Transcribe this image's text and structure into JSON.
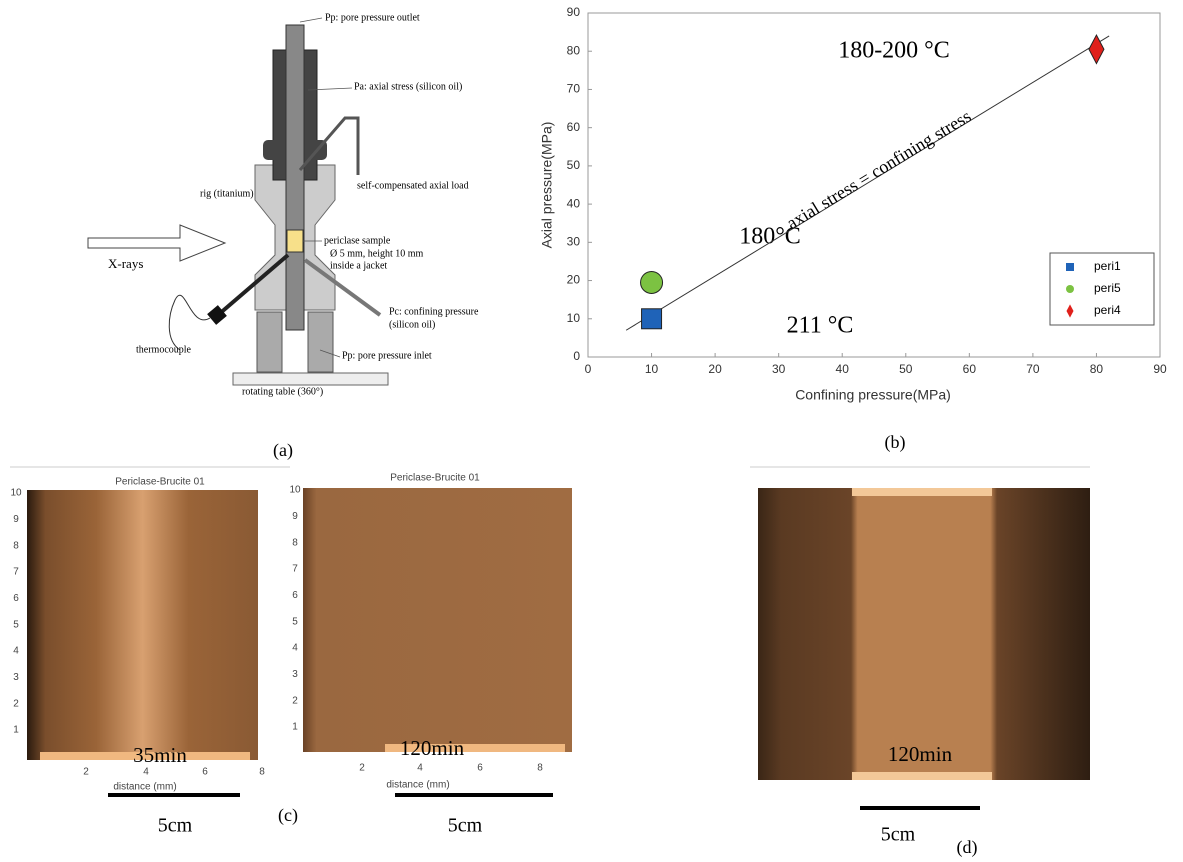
{
  "diagram_a": {
    "labels": [
      "Pp: pore pressure outlet",
      "Pa: axial stress (silicon oil)",
      "self-compensated axial load",
      "rig (titanium)",
      "periclase sample",
      "Ø 5 mm, height 10 mm",
      "inside a jacket",
      "X-rays",
      "Pc: confining pressure",
      "(silicon oil)",
      "thermocouple",
      "Pp: pore pressure inlet",
      "rotating table (360°)"
    ],
    "caption": "(a)"
  },
  "chart_data": {
    "type": "scatter",
    "x_label": "Confining pressure(MPa)",
    "y_label": "Axial pressure(MPa)",
    "xlim": [
      0,
      90
    ],
    "ylim": [
      0,
      90
    ],
    "xticks": [
      0,
      10,
      20,
      30,
      40,
      50,
      60,
      70,
      80,
      90
    ],
    "yticks": [
      0,
      10,
      20,
      30,
      40,
      50,
      60,
      70,
      80,
      90
    ],
    "grid": false,
    "legend": "lower right",
    "series": [
      {
        "name": "peri1",
        "color": "#1f63b8",
        "marker": "square",
        "x": [
          10
        ],
        "values": [
          10
        ]
      },
      {
        "name": "peri5",
        "color": "#7cc242",
        "marker": "circle",
        "x": [
          10
        ],
        "values": [
          19.5
        ]
      },
      {
        "name": "peri4",
        "color": "#e0201b",
        "marker": "diamond",
        "x": [
          80
        ],
        "values": [
          80.5
        ]
      }
    ],
    "reference_line": {
      "label": "axial stress = confining stress",
      "x": [
        6,
        82
      ],
      "values": [
        7,
        84
      ]
    },
    "annotations": [
      "180-200 °C",
      "180°C",
      "211 °C"
    ],
    "caption": "(b)"
  },
  "image_c": {
    "panels": [
      {
        "title": "Periclase-Brucite 01",
        "yticks": [
          1,
          2,
          3,
          4,
          5,
          6,
          7,
          8,
          9,
          10
        ],
        "xticks": [
          2,
          4,
          6,
          8
        ],
        "x_label": "distance (mm)",
        "time": "35min",
        "scale": "5cm"
      },
      {
        "title": "Periclase-Brucite 01",
        "yticks": [
          1,
          2,
          3,
          4,
          5,
          6,
          7,
          8,
          9,
          10
        ],
        "xticks": [
          2,
          4,
          6,
          8
        ],
        "x_label": "distance (mm)",
        "time": "120min",
        "scale": "5cm"
      }
    ],
    "caption": "(c)"
  },
  "image_d": {
    "time": "120min",
    "scale": "5cm",
    "caption": "(d)"
  }
}
